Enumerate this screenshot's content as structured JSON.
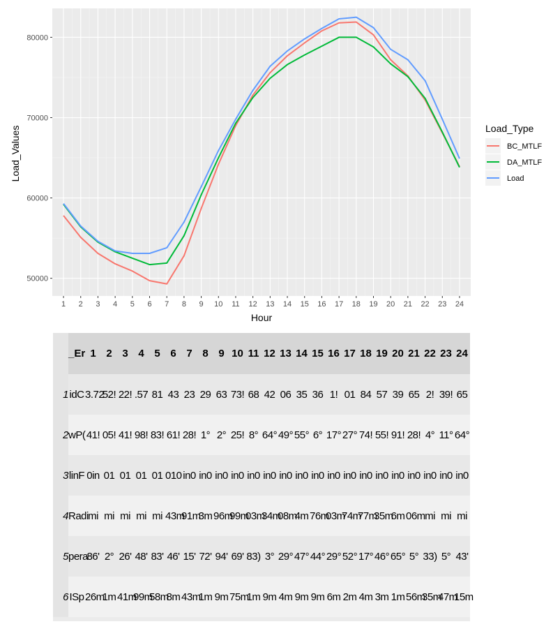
{
  "chart_data": {
    "type": "line",
    "title": "",
    "xlabel": "Hour",
    "ylabel": "Load_Values",
    "x": [
      1,
      2,
      3,
      4,
      5,
      6,
      7,
      8,
      9,
      10,
      11,
      12,
      13,
      14,
      15,
      16,
      17,
      18,
      19,
      20,
      21,
      22,
      23,
      24
    ],
    "xlim": [
      0.35,
      24.65
    ],
    "ylim": [
      47800,
      83600
    ],
    "yticks": [
      50000,
      60000,
      70000,
      80000
    ],
    "ytick_labels": [
      "50000",
      "60000",
      "70000",
      "80000"
    ],
    "xtick_labels": [
      "1",
      "2",
      "3",
      "4",
      "5",
      "6",
      "7",
      "8",
      "9",
      "10",
      "11",
      "12",
      "13",
      "14",
      "15",
      "16",
      "17",
      "18",
      "19",
      "20",
      "21",
      "22",
      "23",
      "24"
    ],
    "grid": true,
    "legend": {
      "title": "Load_Type",
      "position": "right"
    },
    "series": [
      {
        "name": "BC_MTLF",
        "color": "#F8766D",
        "values": [
          57800,
          55100,
          53100,
          51800,
          50900,
          49700,
          49300,
          52800,
          58700,
          64200,
          69000,
          72800,
          75600,
          77700,
          79300,
          80800,
          81800,
          81900,
          80300,
          77200,
          75200,
          72200,
          68100,
          63900
        ]
      },
      {
        "name": "DA_MTLF",
        "color": "#00BA38",
        "values": [
          59200,
          56400,
          54500,
          53300,
          52500,
          51700,
          51900,
          55300,
          60400,
          65000,
          69300,
          72500,
          74900,
          76600,
          77800,
          78900,
          80000,
          80000,
          78800,
          76700,
          75100,
          72400,
          68200,
          63800
        ]
      },
      {
        "name": "Load",
        "color": "#619CFF",
        "values": [
          59300,
          56500,
          54600,
          53400,
          53100,
          53100,
          53800,
          57000,
          61400,
          65900,
          69800,
          73400,
          76400,
          78300,
          79800,
          81100,
          82300,
          82500,
          81200,
          78500,
          77200,
          74600,
          69800,
          64900
        ]
      }
    ]
  },
  "table": {
    "corner": "_Er",
    "headers": [
      "1",
      "2",
      "3",
      "4",
      "5",
      "6",
      "7",
      "8",
      "9",
      "10",
      "11",
      "12",
      "13",
      "14",
      "15",
      "16",
      "17",
      "18",
      "19",
      "20",
      "21",
      "22",
      "23",
      "24"
    ],
    "rows": [
      {
        "num": "1",
        "name": "idC",
        "cells": [
          "3.72",
          "52!",
          "22!",
          ".57",
          "81",
          "43",
          "23",
          "29",
          "63",
          "73!",
          "68",
          "42",
          "06",
          "35",
          "36",
          "1!",
          "01",
          "84",
          "57",
          "39",
          "65",
          "2!",
          "39!",
          "65"
        ]
      },
      {
        "num": "2",
        "name": "wP(",
        "cells": [
          "41!",
          "05!",
          "41!",
          "98!",
          "83!",
          "61!",
          "28!",
          "1°",
          "2°",
          "25!",
          "8°",
          "64°",
          "49°",
          "55°",
          "6°",
          "17°",
          "27°",
          "74!",
          "55!",
          "91!",
          "28!",
          "4°",
          "11°",
          "64°"
        ]
      },
      {
        "num": "3",
        "name": "linF",
        "cells": [
          "0in",
          "01",
          "01",
          "01",
          "01",
          "010",
          "in0",
          "in0",
          "in0",
          "in0",
          "in0",
          "in0",
          "in0",
          "in0",
          "in0",
          "in0",
          "in0",
          "in0",
          "in0",
          "in0",
          "in0",
          "in0",
          "in0",
          "in0"
        ]
      },
      {
        "num": "4",
        "name": "Radi",
        "cells": [
          "mi",
          "mi",
          "mi",
          "mi",
          "mi",
          "43m",
          "91m",
          "3m",
          "96m",
          "99m",
          "03m",
          "34m",
          "08m",
          "4m",
          "76m",
          "03m",
          "74m",
          "77m",
          "35m",
          "6m",
          "06m",
          "mi",
          "mi",
          "mi"
        ]
      },
      {
        "num": "5",
        "name": "pera",
        "cells": [
          "86'",
          "2°",
          "26'",
          "48'",
          "83'",
          "46'",
          "15'",
          "72'",
          "94'",
          "69'",
          "83)",
          "3°",
          "29°",
          "47°",
          "44°",
          "29°",
          "52°",
          "17°",
          "46°",
          "65°",
          "5°",
          "33)",
          "5°",
          "43'"
        ]
      },
      {
        "num": "6",
        "name": "ISp",
        "cells": [
          "26m",
          "1m",
          "41m",
          "99m",
          "58m",
          "8m",
          "43m",
          "1m",
          "9m",
          "75m",
          "1m",
          "9m",
          "4m",
          "9m",
          "9m",
          "6m",
          "2m",
          "4m",
          "3m",
          "1m",
          "56m",
          "35m",
          "47m",
          "15m"
        ]
      }
    ]
  }
}
